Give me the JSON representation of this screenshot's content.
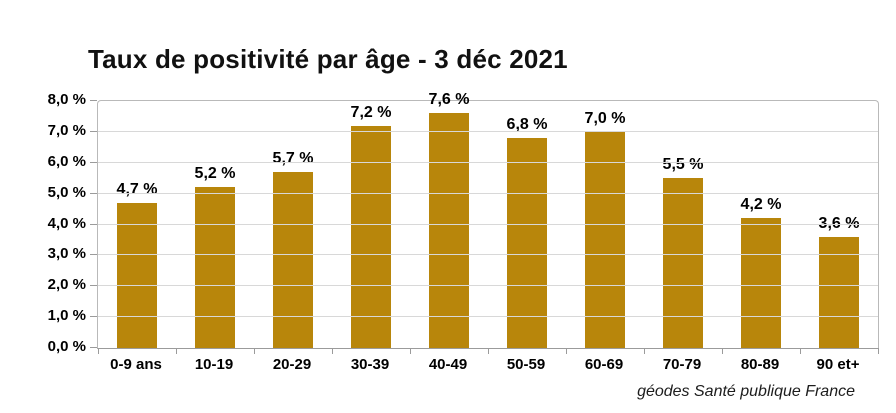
{
  "title": "Taux de positivité par âge - 3 déc 2021",
  "source": "géodes Santé publique France",
  "colors": {
    "bar": "#B8860B",
    "gridline": "#d8d8d8",
    "axis": "#9b9b9b",
    "plot_border": "#b9b9b9",
    "text": "#000000",
    "title_text": "#111111"
  },
  "chart_data": {
    "type": "bar",
    "title": "Taux de positivité par âge - 3 déc 2021",
    "categories": [
      "0-9 ans",
      "10-19",
      "20-29",
      "30-39",
      "40-49",
      "50-59",
      "60-69",
      "70-79",
      "80-89",
      "90 et+"
    ],
    "values": [
      4.7,
      5.2,
      5.7,
      7.2,
      7.6,
      6.8,
      7.0,
      5.5,
      4.2,
      3.6
    ],
    "value_labels": [
      "4,7 %",
      "5,2 %",
      "5,7 %",
      "7,2 %",
      "7,6 %",
      "6,8 %",
      "7,0 %",
      "5,5 %",
      "4,2 %",
      "3,6 %"
    ],
    "xlabel": "",
    "ylabel": "",
    "ylim": [
      0,
      8
    ],
    "y_ticks": [
      "0,0 %",
      "1,0 %",
      "2,0 %",
      "3,0 %",
      "4,0 %",
      "5,0 %",
      "6,0 %",
      "7,0 %",
      "8,0 %"
    ],
    "grid": true,
    "legend": false,
    "bar_color": "#B8860B",
    "source": "géodes Santé publique France"
  }
}
